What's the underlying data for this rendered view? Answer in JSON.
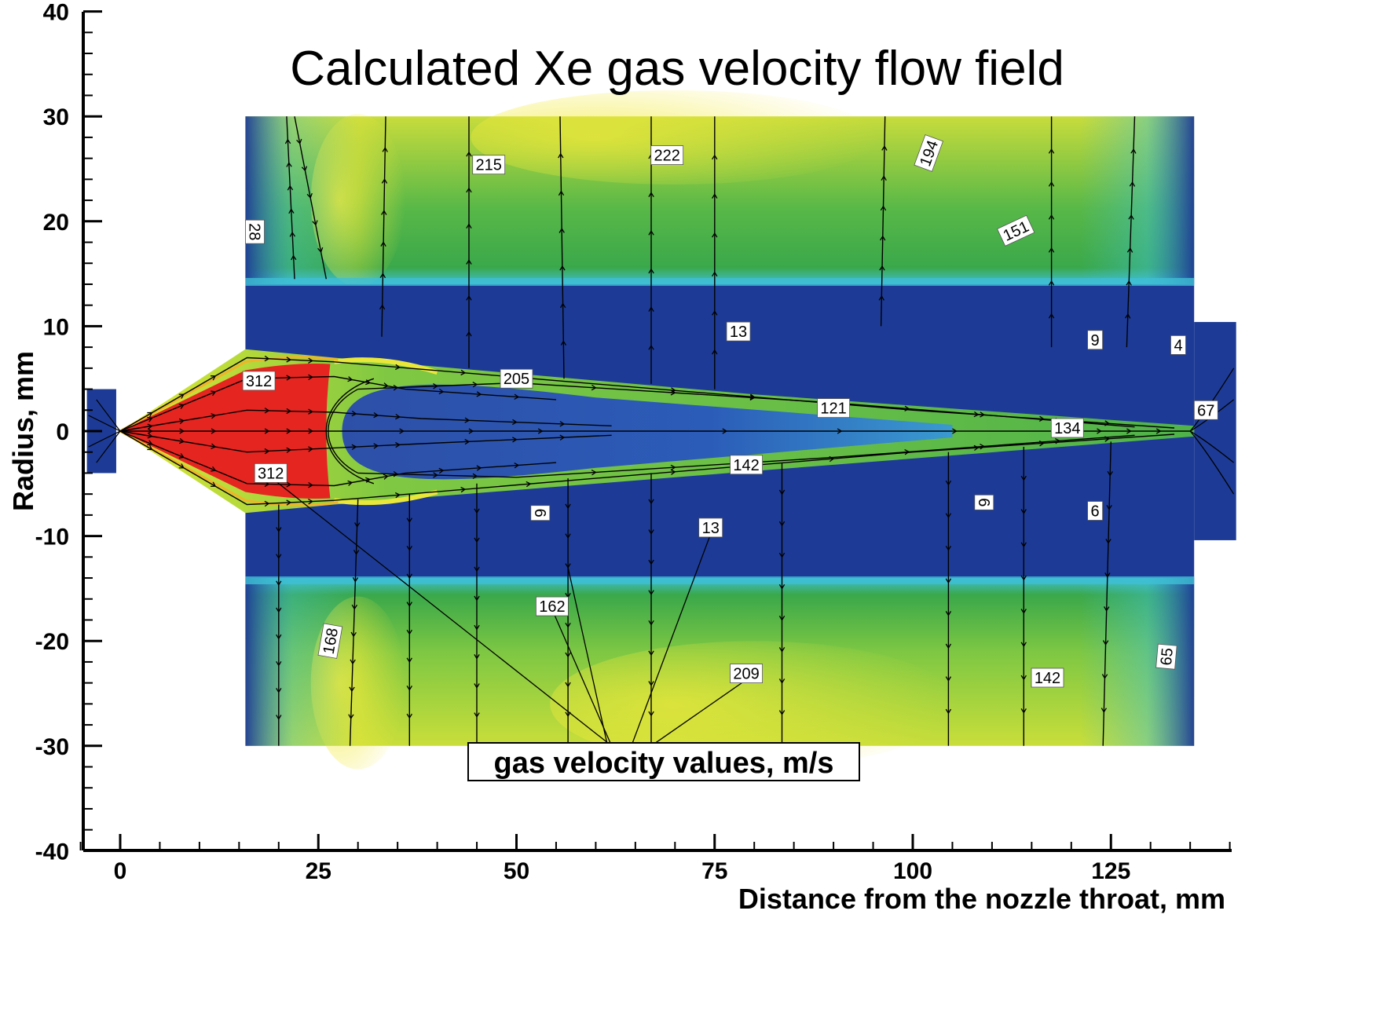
{
  "chart_data": {
    "type": "heatmap",
    "title": "Calculated Xe gas velocity flow field",
    "xlabel": "Distance from the nozzle throat, mm",
    "ylabel": "Radius, mm",
    "xlim": [
      -5,
      140
    ],
    "ylim": [
      -40,
      40
    ],
    "x_ticks": [
      0,
      25,
      50,
      75,
      100,
      125
    ],
    "x_tick_labels": [
      "0",
      "25",
      "50",
      "75",
      "100",
      "125"
    ],
    "y_ticks": [
      -40,
      -30,
      -20,
      -10,
      0,
      10,
      20,
      30,
      40
    ],
    "y_tick_labels": [
      "-40",
      "-30",
      "-20",
      "-10",
      "0",
      "10",
      "20",
      "30",
      "40"
    ],
    "legend_annotation": "gas velocity values, m/s",
    "value_labels": [
      {
        "text": "312",
        "x": 17.5,
        "y": 4.8,
        "rotate": 0
      },
      {
        "text": "312",
        "x": 19,
        "y": -4,
        "rotate": 0
      },
      {
        "text": "205",
        "x": 50,
        "y": 5,
        "rotate": 0
      },
      {
        "text": "121",
        "x": 90,
        "y": 2.2,
        "rotate": 0
      },
      {
        "text": "134",
        "x": 119.5,
        "y": 0.3,
        "rotate": 0
      },
      {
        "text": "142",
        "x": 79,
        "y": -3.2,
        "rotate": 0
      },
      {
        "text": "67",
        "x": 137,
        "y": 2.0,
        "rotate": 0
      },
      {
        "text": "13",
        "x": 78,
        "y": 9.5,
        "rotate": 0
      },
      {
        "text": "9",
        "x": 123,
        "y": 8.7,
        "rotate": 0
      },
      {
        "text": "4",
        "x": 133.5,
        "y": 8.2,
        "rotate": 0
      },
      {
        "text": "28",
        "x": 17,
        "y": 19,
        "rotate": 90
      },
      {
        "text": "215",
        "x": 46.5,
        "y": 25.4,
        "rotate": 0
      },
      {
        "text": "222",
        "x": 69,
        "y": 26.3,
        "rotate": 0
      },
      {
        "text": "194",
        "x": 102,
        "y": 26.5,
        "rotate": -70
      },
      {
        "text": "151",
        "x": 113,
        "y": 19.1,
        "rotate": -25
      },
      {
        "text": "6",
        "x": 53,
        "y": -7.8,
        "rotate": 90
      },
      {
        "text": "13",
        "x": 74.5,
        "y": -9.2,
        "rotate": 0
      },
      {
        "text": "6",
        "x": 109,
        "y": -6.8,
        "rotate": 90
      },
      {
        "text": "6",
        "x": 123,
        "y": -7.6,
        "rotate": 0
      },
      {
        "text": "162",
        "x": 54.5,
        "y": -16.7,
        "rotate": 0
      },
      {
        "text": "168",
        "x": 26.5,
        "y": -20,
        "rotate": -80
      },
      {
        "text": "209",
        "x": 79,
        "y": -23.1,
        "rotate": 0
      },
      {
        "text": "142",
        "x": 117,
        "y": -23.5,
        "rotate": 0
      },
      {
        "text": "65",
        "x": 132,
        "y": -21.5,
        "rotate": -85
      }
    ],
    "colorscale": [
      "#1d3b96",
      "#2d6ad0",
      "#3fbfd4",
      "#3cae50",
      "#7fc843",
      "#d8e635",
      "#f5e430",
      "#e52520"
    ]
  }
}
